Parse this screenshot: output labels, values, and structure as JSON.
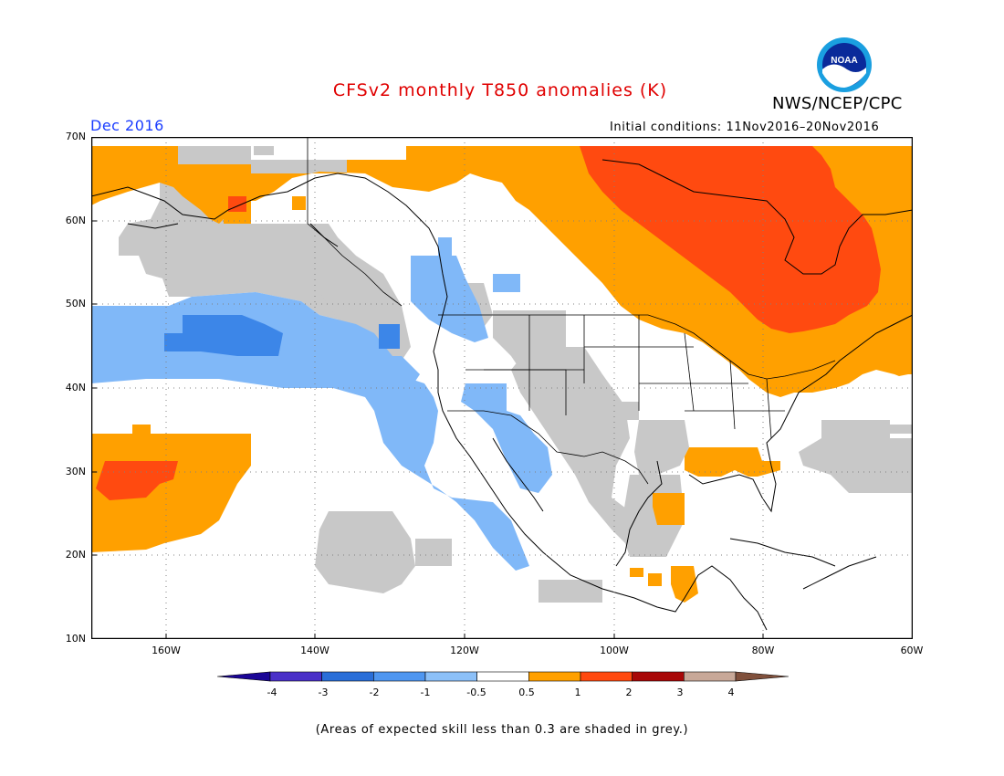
{
  "title": "CFSv2 monthly T850 anomalies (K)",
  "agency": "NWS/NCEP/CPC",
  "logo_text": "NOAA",
  "valid_month": "Dec 2016",
  "initial_conditions": "Initial conditions: 11Nov2016–20Nov2016",
  "lat_labels": [
    "70N",
    "60N",
    "50N",
    "40N",
    "30N",
    "20N",
    "10N"
  ],
  "lon_labels": [
    "160W",
    "140W",
    "120W",
    "100W",
    "80W",
    "60W"
  ],
  "colorbar": {
    "levels": [
      "-4",
      "-3",
      "-2",
      "-1",
      "-0.5",
      "0.5",
      "1",
      "2",
      "3",
      "4"
    ],
    "colors": [
      "#1a0596",
      "#4a30c8",
      "#2a6ed8",
      "#4f96f0",
      "#8cc0f8",
      "#ffffff",
      "#ffa000",
      "#ff4a10",
      "#a80808",
      "#c8a898",
      "#80503c"
    ]
  },
  "skill_note": "(Areas of expected skill less than 0.3 are shaded in grey.)",
  "map": {
    "lat_range": [
      10,
      70
    ],
    "lon_range": [
      -170,
      -60
    ],
    "colors": {
      "warm_1": "#ffa000",
      "warm_2": "#ff4a10",
      "cool_1": "#80b8f8",
      "cool_2": "#3c86e8",
      "low_skill": "#c8c8c8"
    }
  }
}
